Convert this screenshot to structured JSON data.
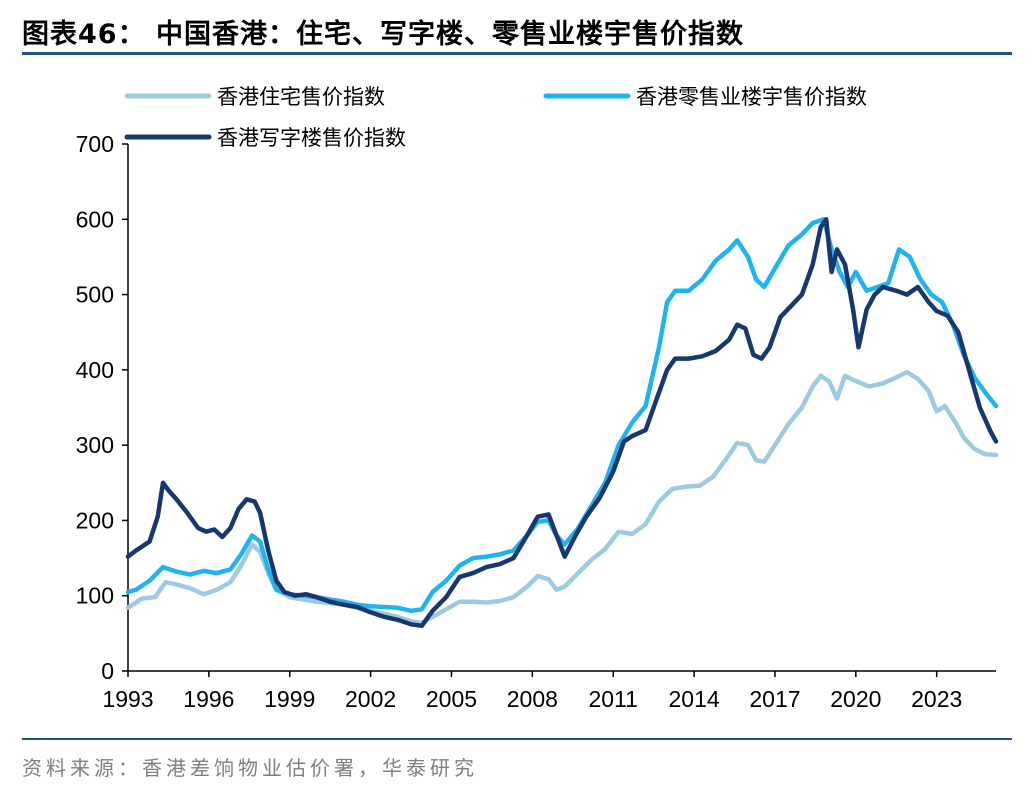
{
  "title": "图表46： 中国香港：住宅、写字楼、零售业楼宇售价指数",
  "source": "资料来源：香港差饷物业估价署，华泰研究",
  "chart_data": {
    "type": "line",
    "title": "中国香港：住宅、写字楼、零售业楼宇售价指数",
    "xlabel": "",
    "ylabel": "",
    "xlim": [
      1993,
      2025.2
    ],
    "ylim": [
      0,
      700
    ],
    "yticks": [
      0,
      100,
      200,
      300,
      400,
      500,
      600,
      700
    ],
    "xticks": [
      1993,
      1996,
      1999,
      2002,
      2005,
      2008,
      2011,
      2014,
      2017,
      2020,
      2023
    ],
    "legend_position": "top",
    "series": [
      {
        "name": "香港住宅售价指数",
        "color": "#9ccbdf",
        "points": [
          [
            1993.0,
            84
          ],
          [
            1993.5,
            96
          ],
          [
            1994.0,
            98
          ],
          [
            1994.4,
            118
          ],
          [
            1994.8,
            115
          ],
          [
            1995.3,
            110
          ],
          [
            1995.8,
            102
          ],
          [
            1996.3,
            108
          ],
          [
            1996.8,
            118
          ],
          [
            1997.2,
            140
          ],
          [
            1997.6,
            168
          ],
          [
            1997.9,
            158
          ],
          [
            1998.2,
            130
          ],
          [
            1998.5,
            108
          ],
          [
            1999.0,
            98
          ],
          [
            1999.5,
            95
          ],
          [
            2000.0,
            92
          ],
          [
            2000.5,
            90
          ],
          [
            2001.0,
            88
          ],
          [
            2001.5,
            84
          ],
          [
            2002.0,
            80
          ],
          [
            2002.5,
            76
          ],
          [
            2003.0,
            72
          ],
          [
            2003.5,
            66
          ],
          [
            2003.9,
            64
          ],
          [
            2004.3,
            72
          ],
          [
            2004.8,
            82
          ],
          [
            2005.3,
            92
          ],
          [
            2005.8,
            92
          ],
          [
            2006.3,
            91
          ],
          [
            2006.8,
            93
          ],
          [
            2007.3,
            98
          ],
          [
            2007.8,
            112
          ],
          [
            2008.2,
            126
          ],
          [
            2008.6,
            122
          ],
          [
            2008.9,
            108
          ],
          [
            2009.2,
            112
          ],
          [
            2009.7,
            130
          ],
          [
            2010.2,
            148
          ],
          [
            2010.7,
            162
          ],
          [
            2011.2,
            185
          ],
          [
            2011.7,
            182
          ],
          [
            2012.2,
            195
          ],
          [
            2012.7,
            225
          ],
          [
            2013.2,
            242
          ],
          [
            2013.7,
            245
          ],
          [
            2014.2,
            246
          ],
          [
            2014.7,
            258
          ],
          [
            2015.2,
            282
          ],
          [
            2015.6,
            303
          ],
          [
            2016.0,
            300
          ],
          [
            2016.3,
            280
          ],
          [
            2016.6,
            278
          ],
          [
            2017.0,
            300
          ],
          [
            2017.5,
            328
          ],
          [
            2018.0,
            350
          ],
          [
            2018.4,
            378
          ],
          [
            2018.7,
            392
          ],
          [
            2019.0,
            385
          ],
          [
            2019.3,
            362
          ],
          [
            2019.6,
            392
          ],
          [
            2020.0,
            385
          ],
          [
            2020.5,
            378
          ],
          [
            2021.0,
            382
          ],
          [
            2021.5,
            390
          ],
          [
            2021.9,
            397
          ],
          [
            2022.3,
            388
          ],
          [
            2022.7,
            372
          ],
          [
            2023.0,
            345
          ],
          [
            2023.3,
            352
          ],
          [
            2023.7,
            330
          ],
          [
            2024.0,
            310
          ],
          [
            2024.4,
            295
          ],
          [
            2024.8,
            288
          ],
          [
            2025.2,
            287
          ]
        ]
      },
      {
        "name": "香港零售业楼宇售价指数",
        "color": "#1fb4ef",
        "points": [
          [
            1993.0,
            105
          ],
          [
            1993.3,
            108
          ],
          [
            1993.8,
            120
          ],
          [
            1994.3,
            138
          ],
          [
            1994.8,
            132
          ],
          [
            1995.3,
            128
          ],
          [
            1995.8,
            133
          ],
          [
            1996.3,
            130
          ],
          [
            1996.8,
            135
          ],
          [
            1997.2,
            155
          ],
          [
            1997.6,
            180
          ],
          [
            1997.9,
            172
          ],
          [
            1998.2,
            135
          ],
          [
            1998.5,
            108
          ],
          [
            1999.0,
            102
          ],
          [
            1999.5,
            100
          ],
          [
            2000.0,
            98
          ],
          [
            2000.5,
            95
          ],
          [
            2001.0,
            92
          ],
          [
            2001.5,
            88
          ],
          [
            2002.0,
            86
          ],
          [
            2002.5,
            85
          ],
          [
            2003.0,
            84
          ],
          [
            2003.5,
            80
          ],
          [
            2003.9,
            82
          ],
          [
            2004.3,
            105
          ],
          [
            2004.8,
            120
          ],
          [
            2005.3,
            140
          ],
          [
            2005.8,
            150
          ],
          [
            2006.3,
            152
          ],
          [
            2006.8,
            155
          ],
          [
            2007.3,
            160
          ],
          [
            2007.8,
            180
          ],
          [
            2008.2,
            198
          ],
          [
            2008.6,
            200
          ],
          [
            2008.9,
            180
          ],
          [
            2009.2,
            168
          ],
          [
            2009.7,
            190
          ],
          [
            2010.2,
            220
          ],
          [
            2010.7,
            250
          ],
          [
            2011.2,
            300
          ],
          [
            2011.7,
            330
          ],
          [
            2012.2,
            352
          ],
          [
            2012.7,
            430
          ],
          [
            2013.0,
            490
          ],
          [
            2013.3,
            505
          ],
          [
            2013.8,
            505
          ],
          [
            2014.3,
            520
          ],
          [
            2014.8,
            545
          ],
          [
            2015.3,
            560
          ],
          [
            2015.6,
            572
          ],
          [
            2016.0,
            550
          ],
          [
            2016.3,
            520
          ],
          [
            2016.6,
            510
          ],
          [
            2017.0,
            535
          ],
          [
            2017.5,
            565
          ],
          [
            2018.0,
            580
          ],
          [
            2018.4,
            595
          ],
          [
            2018.8,
            600
          ],
          [
            2019.1,
            560
          ],
          [
            2019.4,
            530
          ],
          [
            2019.7,
            510
          ],
          [
            2020.0,
            530
          ],
          [
            2020.4,
            505
          ],
          [
            2020.8,
            510
          ],
          [
            2021.2,
            515
          ],
          [
            2021.6,
            560
          ],
          [
            2022.0,
            550
          ],
          [
            2022.4,
            520
          ],
          [
            2022.8,
            500
          ],
          [
            2023.2,
            490
          ],
          [
            2023.6,
            460
          ],
          [
            2024.0,
            420
          ],
          [
            2024.4,
            390
          ],
          [
            2024.8,
            370
          ],
          [
            2025.2,
            352
          ]
        ]
      },
      {
        "name": "香港写字楼售价指数",
        "color": "#17386e",
        "points": [
          [
            1993.0,
            152
          ],
          [
            1993.3,
            160
          ],
          [
            1993.8,
            172
          ],
          [
            1994.1,
            205
          ],
          [
            1994.3,
            250
          ],
          [
            1994.5,
            240
          ],
          [
            1994.8,
            228
          ],
          [
            1995.2,
            210
          ],
          [
            1995.6,
            190
          ],
          [
            1995.9,
            185
          ],
          [
            1996.2,
            188
          ],
          [
            1996.5,
            178
          ],
          [
            1996.8,
            190
          ],
          [
            1997.1,
            215
          ],
          [
            1997.4,
            228
          ],
          [
            1997.7,
            225
          ],
          [
            1997.9,
            210
          ],
          [
            1998.2,
            160
          ],
          [
            1998.5,
            120
          ],
          [
            1998.8,
            105
          ],
          [
            1999.2,
            100
          ],
          [
            1999.6,
            102
          ],
          [
            2000.0,
            98
          ],
          [
            2000.5,
            92
          ],
          [
            2001.0,
            88
          ],
          [
            2001.5,
            85
          ],
          [
            2002.0,
            78
          ],
          [
            2002.5,
            72
          ],
          [
            2003.0,
            68
          ],
          [
            2003.5,
            62
          ],
          [
            2003.9,
            60
          ],
          [
            2004.3,
            80
          ],
          [
            2004.8,
            98
          ],
          [
            2005.3,
            125
          ],
          [
            2005.8,
            130
          ],
          [
            2006.3,
            138
          ],
          [
            2006.8,
            142
          ],
          [
            2007.3,
            150
          ],
          [
            2007.8,
            180
          ],
          [
            2008.2,
            205
          ],
          [
            2008.6,
            208
          ],
          [
            2008.9,
            180
          ],
          [
            2009.2,
            152
          ],
          [
            2009.6,
            180
          ],
          [
            2010.0,
            205
          ],
          [
            2010.5,
            230
          ],
          [
            2011.0,
            265
          ],
          [
            2011.4,
            305
          ],
          [
            2011.7,
            312
          ],
          [
            2012.2,
            320
          ],
          [
            2012.6,
            360
          ],
          [
            2013.0,
            400
          ],
          [
            2013.3,
            415
          ],
          [
            2013.8,
            415
          ],
          [
            2014.3,
            418
          ],
          [
            2014.8,
            425
          ],
          [
            2015.3,
            440
          ],
          [
            2015.6,
            460
          ],
          [
            2015.9,
            455
          ],
          [
            2016.2,
            420
          ],
          [
            2016.5,
            415
          ],
          [
            2016.8,
            430
          ],
          [
            2017.2,
            470
          ],
          [
            2017.6,
            485
          ],
          [
            2018.0,
            500
          ],
          [
            2018.4,
            540
          ],
          [
            2018.7,
            590
          ],
          [
            2018.9,
            600
          ],
          [
            2019.1,
            530
          ],
          [
            2019.3,
            560
          ],
          [
            2019.6,
            540
          ],
          [
            2019.9,
            480
          ],
          [
            2020.1,
            430
          ],
          [
            2020.4,
            480
          ],
          [
            2020.7,
            500
          ],
          [
            2021.0,
            510
          ],
          [
            2021.5,
            505
          ],
          [
            2021.9,
            500
          ],
          [
            2022.3,
            510
          ],
          [
            2022.7,
            490
          ],
          [
            2023.0,
            478
          ],
          [
            2023.4,
            472
          ],
          [
            2023.8,
            450
          ],
          [
            2024.2,
            400
          ],
          [
            2024.6,
            350
          ],
          [
            2025.0,
            318
          ],
          [
            2025.2,
            305
          ]
        ]
      }
    ]
  }
}
